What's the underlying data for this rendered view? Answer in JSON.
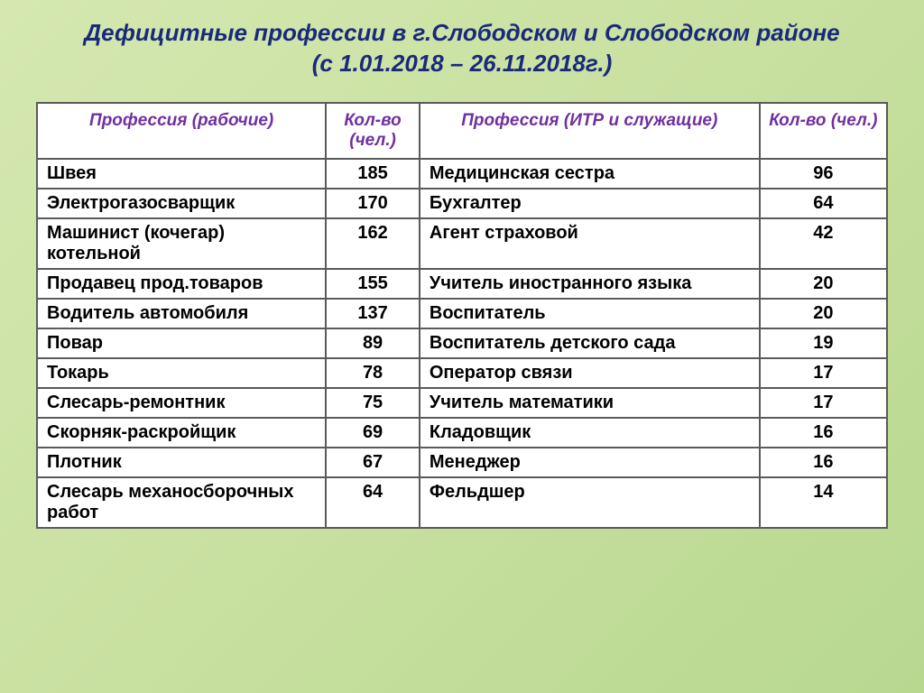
{
  "title_line1": "Дефицитные профессии в г.Слободском и  Слободском районе",
  "title_line2": "(с 1.01.2018 – 26.11.2018г.)",
  "columns": {
    "prof1": "Профессия (рабочие)",
    "count1": "Кол-во (чел.)",
    "prof2": "Профессия (ИТР и служащие)",
    "count2": "Кол-во (чел.)"
  },
  "rows": [
    {
      "p1": "Швея",
      "c1": "185",
      "p2": "Медицинская сестра",
      "c2": "96"
    },
    {
      "p1": "Электрогазосварщик",
      "c1": "170",
      "p2": "Бухгалтер",
      "c2": "64"
    },
    {
      "p1": "Машинист (кочегар) котельной",
      "c1": "162",
      "p2": "Агент страховой",
      "c2": "42"
    },
    {
      "p1": "Продавец прод.товаров",
      "c1": "155",
      "p2": "Учитель иностранного языка",
      "c2": "20"
    },
    {
      "p1": "Водитель автомобиля",
      "c1": "137",
      "p2": "Воспитатель",
      "c2": "20"
    },
    {
      "p1": "Повар",
      "c1": "89",
      "p2": "Воспитатель детского сада",
      "c2": "19"
    },
    {
      "p1": "Токарь",
      "c1": "78",
      "p2": "Оператор связи",
      "c2": "17"
    },
    {
      "p1": "Слесарь-ремонтник",
      "c1": "75",
      "p2": "Учитель математики",
      "c2": "17"
    },
    {
      "p1": "Скорняк-раскройщик",
      "c1": "69",
      "p2": "Кладовщик",
      "c2": "16"
    },
    {
      "p1": "Плотник",
      "c1": "67",
      "p2": "Менеджер",
      "c2": "16"
    },
    {
      "p1": "Слесарь механосборочных работ",
      "c1": "64",
      "p2": "Фельдшер",
      "c2": "14"
    }
  ],
  "style": {
    "title_color": "#1a2a7a",
    "header_color": "#7030a0",
    "border_color": "#5a5a5a",
    "background_gradient": [
      "#d4e8b0",
      "#c8e0a0",
      "#b8d890"
    ],
    "title_fontsize": 26,
    "header_fontsize": 19,
    "cell_fontsize": 20,
    "col_widths_pct": [
      34,
      11,
      40,
      15
    ]
  }
}
